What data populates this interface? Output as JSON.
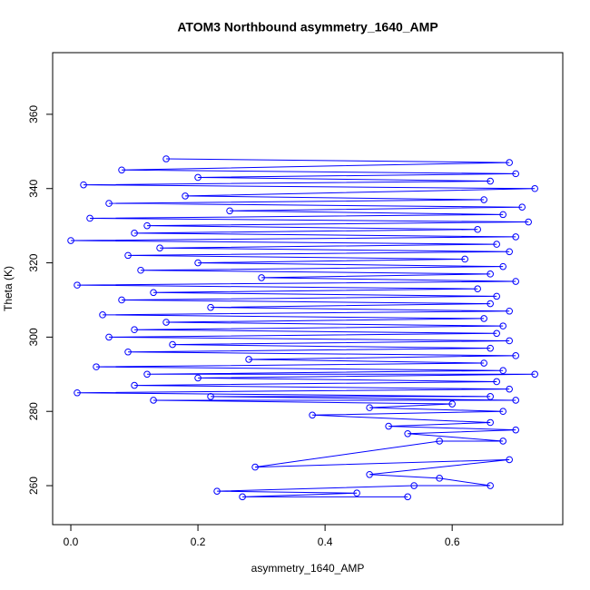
{
  "chart_data": {
    "type": "scatter",
    "title": "ATOM3 Northbound asymmetry_1640_AMP",
    "x_label": "asymmetry_1640_AMP",
    "y_label": "Theta (K)",
    "color": "#0000ff",
    "connect": true,
    "xlim": [
      -0.0286,
      0.774
    ],
    "ylim": [
      249.5,
      376.6
    ],
    "xticks": [
      {
        "value": 0,
        "label": "0.0"
      },
      0.2,
      0.4,
      0.6
    ],
    "yticks": [
      260,
      280,
      300,
      320,
      340,
      360
    ],
    "x": [
      0.15,
      0.69,
      0.08,
      0.7,
      0.2,
      0.66,
      0.02,
      0.73,
      0.18,
      0.65,
      0.06,
      0.71,
      0.25,
      0.68,
      0.03,
      0.72,
      0.12,
      0.64,
      0.1,
      0.7,
      0.0,
      0.67,
      0.14,
      0.69,
      0.09,
      0.62,
      0.2,
      0.68,
      0.11,
      0.66,
      0.3,
      0.7,
      0.01,
      0.64,
      0.13,
      0.67,
      0.08,
      0.66,
      0.22,
      0.69,
      0.05,
      0.65,
      0.15,
      0.68,
      0.1,
      0.67,
      0.06,
      0.69,
      0.16,
      0.66,
      0.09,
      0.7,
      0.28,
      0.65,
      0.04,
      0.68,
      0.12,
      0.73,
      0.2,
      0.67,
      0.1,
      0.69,
      0.01,
      0.66,
      0.22,
      0.7,
      0.13,
      0.6,
      0.47,
      0.68,
      0.38,
      0.66,
      0.5,
      0.7,
      0.53,
      0.68,
      0.58,
      0.29,
      0.69,
      0.47,
      0.58,
      0.66,
      0.54,
      0.23,
      0.45,
      0.27,
      0.53
    ],
    "values": [
      348,
      347,
      345,
      344,
      343,
      342,
      341,
      340,
      338,
      337,
      336,
      335,
      334,
      333,
      332,
      331,
      330,
      329,
      328,
      327,
      326,
      325,
      324,
      323,
      322,
      321,
      320,
      319,
      318,
      317,
      316,
      315,
      314,
      313,
      312,
      311,
      310,
      309,
      308,
      307,
      306,
      305,
      304,
      303,
      302,
      301,
      300,
      299,
      298,
      297,
      296,
      295,
      294,
      293,
      292,
      291,
      290,
      290,
      289,
      288,
      287,
      286,
      285,
      284,
      284,
      283,
      283,
      282,
      281,
      280,
      279,
      277,
      276,
      275,
      274,
      272,
      272,
      265,
      267,
      263,
      262,
      260,
      260,
      258.5,
      258,
      257,
      257
    ]
  }
}
